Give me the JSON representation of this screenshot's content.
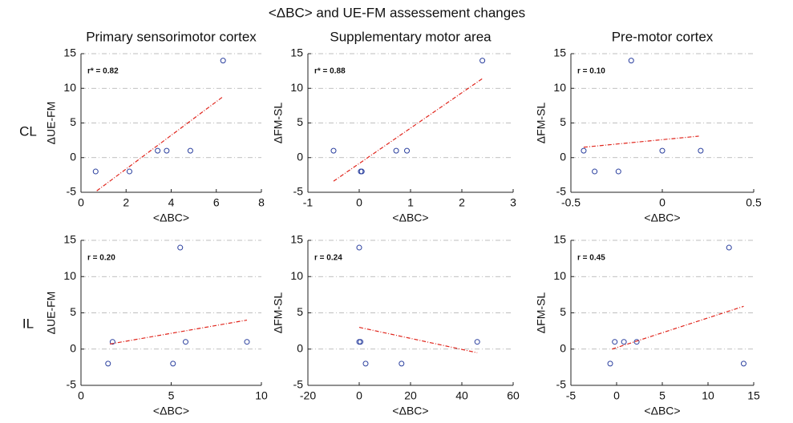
{
  "title": "<ΔBC> and UE-FM assessement changes",
  "column_titles": [
    "Primary sensorimotor cortex",
    "Supplementary motor area",
    "Pre-motor cortex"
  ],
  "row_labels": [
    "CL",
    "IL"
  ],
  "chart_data": [
    {
      "type": "scatter",
      "xlabel": "<ΔBC>",
      "ylabel": "ΔUE-FM",
      "annotation": "r* = 0.82",
      "x": [
        0.65,
        2.15,
        3.4,
        3.8,
        4.85,
        6.3
      ],
      "values": [
        -2,
        -2,
        1,
        1,
        1,
        14
      ],
      "fit": {
        "x": [
          0.7,
          6.3
        ],
        "values": [
          -4.8,
          8.8
        ]
      },
      "xlim": [
        0,
        8
      ],
      "xticks": [
        0,
        2,
        4,
        6,
        8
      ],
      "ylim": [
        -5,
        15
      ],
      "yticks": [
        -5,
        0,
        5,
        10,
        15
      ],
      "grid": "y",
      "color": "#2a3f9e",
      "fit_color": "#e0241b"
    },
    {
      "type": "scatter",
      "xlabel": "<ΔBC>",
      "ylabel": "ΔFM-SL",
      "annotation": "r* = 0.88",
      "x": [
        -0.5,
        0.03,
        0.05,
        0.72,
        0.93,
        2.4
      ],
      "values": [
        1,
        -2,
        -2,
        1,
        1,
        14
      ],
      "fit": {
        "x": [
          -0.5,
          2.4
        ],
        "values": [
          -3.4,
          11.4
        ]
      },
      "xlim": [
        -1,
        3
      ],
      "xticks": [
        -1,
        0,
        1,
        2,
        3
      ],
      "ylim": [
        -5,
        15
      ],
      "yticks": [
        -5,
        0,
        5,
        10,
        15
      ],
      "grid": "y",
      "color": "#2a3f9e",
      "fit_color": "#e0241b"
    },
    {
      "type": "scatter",
      "xlabel": "<ΔBC>",
      "ylabel": "ΔFM-SL",
      "annotation": "r = 0.10",
      "x": [
        -0.43,
        -0.37,
        -0.24,
        -0.17,
        0,
        0.21
      ],
      "values": [
        1,
        -2,
        -2,
        14,
        1,
        1
      ],
      "fit": {
        "x": [
          -0.43,
          0.2
        ],
        "values": [
          1.5,
          3.1
        ]
      },
      "xlim": [
        -0.5,
        0.5
      ],
      "xticks": [
        -0.5,
        0,
        0.5
      ],
      "ylim": [
        -5,
        15
      ],
      "yticks": [
        -5,
        0,
        5,
        10,
        15
      ],
      "grid": "y",
      "color": "#2a3f9e",
      "fit_color": "#e0241b"
    },
    {
      "type": "scatter",
      "xlabel": "<ΔBC>",
      "ylabel": "ΔUE-FM",
      "annotation": "r = 0.20",
      "x": [
        1.5,
        1.75,
        5.1,
        5.5,
        5.8,
        9.2
      ],
      "values": [
        -2,
        1,
        -2,
        14,
        1,
        1
      ],
      "fit": {
        "x": [
          1.6,
          9.2
        ],
        "values": [
          0.7,
          4
        ]
      },
      "xlim": [
        0,
        10
      ],
      "xticks": [
        0,
        5,
        10
      ],
      "ylim": [
        -5,
        15
      ],
      "yticks": [
        -5,
        0,
        5,
        10,
        15
      ],
      "grid": "y",
      "color": "#2a3f9e",
      "fit_color": "#e0241b"
    },
    {
      "type": "scatter",
      "xlabel": "<ΔBC>",
      "ylabel": "ΔFM-SL",
      "annotation": "r = 0.24",
      "x": [
        0,
        0.5,
        0,
        2.5,
        16.5,
        46
      ],
      "values": [
        1,
        1,
        14,
        -2,
        -2,
        1
      ],
      "fit": {
        "x": [
          0,
          46
        ],
        "values": [
          3,
          -0.5
        ]
      },
      "xlim": [
        -20,
        60
      ],
      "xticks": [
        -20,
        0,
        20,
        40,
        60
      ],
      "ylim": [
        -5,
        15
      ],
      "yticks": [
        -5,
        0,
        5,
        10,
        15
      ],
      "grid": "y",
      "color": "#2a3f9e",
      "fit_color": "#e0241b"
    },
    {
      "type": "scatter",
      "xlabel": "<ΔBC>",
      "ylabel": "ΔFM-SL",
      "annotation": "r = 0.45",
      "x": [
        -0.7,
        -0.2,
        0.8,
        2.2,
        12.3,
        13.9
      ],
      "values": [
        -2,
        1,
        1,
        1,
        14,
        -2
      ],
      "fit": {
        "x": [
          -0.5,
          13.9
        ],
        "values": [
          0,
          5.9
        ]
      },
      "xlim": [
        -5,
        15
      ],
      "xticks": [
        -5,
        0,
        5,
        10,
        15
      ],
      "ylim": [
        -5,
        15
      ],
      "yticks": [
        -5,
        0,
        5,
        10,
        15
      ],
      "grid": "y",
      "color": "#2a3f9e",
      "fit_color": "#e0241b"
    }
  ]
}
